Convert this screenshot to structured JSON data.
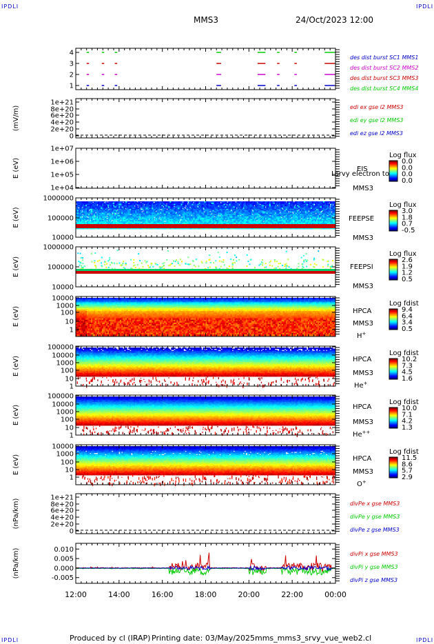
{
  "header": {
    "corner_label": "IPDLI",
    "title": "MMS3",
    "datetime": "24/Oct/2023 12:00"
  },
  "footer": {
    "produced_by": "Produced by cl (IRAP)",
    "printing_date": "Printing date: 03/May/2025",
    "filename": "mms_mms3_srvy_vue_web2.cl"
  },
  "time_axis": [
    "12:00",
    "14:00",
    "16:00",
    "18:00",
    "20:00",
    "22:00",
    "00:00"
  ],
  "colors": {
    "c1": "#0000cc",
    "c2": "#cc00cc",
    "c3": "#cc0000",
    "c4": "#00cc00"
  },
  "panels": [
    {
      "id": "burst",
      "yticks": [
        "4",
        "3",
        "2",
        "1"
      ],
      "legend": [
        "des dist burst SC1 MMS1",
        "des dist burst SC2 MMS2",
        "des dist burst SC3 MMS3",
        "des dist burst SC4 MMS4"
      ]
    },
    {
      "id": "edi",
      "ylabel": "(mV/m)",
      "yticks": [
        "1e+21",
        "8e+20",
        "6e+20",
        "4e+20",
        "2e+20",
        "0"
      ],
      "legend": [
        "edi ex gse l2 MMS3",
        "edi ey gse l2 MMS3",
        "edi ez gse l2 MMS3"
      ]
    },
    {
      "id": "eis",
      "ylabel": "E (eV)",
      "yticks": [
        "1e+07",
        "1e+06",
        "1e+05",
        "1e+04"
      ],
      "instrument": "EIS",
      "overlay_text": "Lsrvy electron to",
      "sat": "MMS3",
      "cb_title": "Log flux",
      "cb_ticks": [
        "0.0",
        "0.0",
        "0.0",
        "0.0"
      ]
    },
    {
      "id": "feepse",
      "ylabel": "E (eV)",
      "yticks": [
        "1000000",
        "100000",
        "10000"
      ],
      "instrument": "FEEPSE",
      "sat": "MMS3",
      "cb_title": "Log flux",
      "cb_ticks": [
        "3.0",
        "1.8",
        "0.7",
        "-0.5"
      ]
    },
    {
      "id": "feepsi",
      "ylabel": "E (eV)",
      "yticks": [
        "1000000",
        "100000",
        "10000"
      ],
      "instrument": "FEEPSI",
      "sat": "MMS3",
      "cb_title": "Log flux",
      "cb_ticks": [
        "2.6",
        "1.9",
        "1.2",
        "0.5"
      ]
    },
    {
      "id": "hpca_h",
      "ylabel": "E (eV)",
      "yticks": [
        "10000",
        "1000",
        "100",
        "10",
        "1"
      ],
      "instrument": "HPCA",
      "sat": "MMS3",
      "species": "H",
      "species_sup": "+",
      "cb_title": "Log fdist",
      "cb_ticks": [
        "9.4",
        "6.4",
        "3.4",
        "0.5"
      ]
    },
    {
      "id": "hpca_he",
      "ylabel": "E (eV)",
      "yticks": [
        "100000",
        "10000",
        "1000",
        "100",
        "10",
        "1"
      ],
      "instrument": "HPCA",
      "sat": "MMS3",
      "species": "He",
      "species_sup": "+",
      "cb_title": "Log fdist",
      "cb_ticks": [
        "10.2",
        "7.3",
        "4.5",
        "1.6"
      ]
    },
    {
      "id": "hpca_hepp",
      "ylabel": "E (eV)",
      "yticks": [
        "100000",
        "10000",
        "1000",
        "100",
        "10",
        "1"
      ],
      "instrument": "HPCA",
      "sat": "MMS3",
      "species": "He",
      "species_sup": "++",
      "cb_title": "Log fdist",
      "cb_ticks": [
        "10.0",
        "7.1",
        "4.2",
        "1.3"
      ]
    },
    {
      "id": "hpca_o",
      "ylabel": "E (eV)",
      "yticks": [
        "10000",
        "1000",
        "100",
        "10",
        "1"
      ],
      "instrument": "HPCA",
      "sat": "MMS3",
      "species": "O",
      "species_sup": "+",
      "cb_title": "Log fdist",
      "cb_ticks": [
        "11.5",
        "8.6",
        "5.7",
        "2.9"
      ]
    },
    {
      "id": "divpe",
      "ylabel": "(nPa/km)",
      "yticks": [
        "1e+21",
        "8e+20",
        "6e+20",
        "4e+20",
        "2e+20",
        "0"
      ],
      "legend": [
        "divPe x gse MMS3",
        "divPe y gse MMS3",
        "divPe z gse MMS3"
      ]
    },
    {
      "id": "divpi",
      "ylabel": "(nPa/km)",
      "yticks": [
        "0.010",
        "0.005",
        "0.000",
        "-0.005"
      ],
      "legend": [
        "divPi x gse MMS3",
        "divPi y gse MMS3",
        "divPi z gse MMS3"
      ]
    }
  ],
  "chart_data": {
    "type": "line",
    "title": "MMS3",
    "x": [
      "12:00",
      "14:00",
      "16:00",
      "18:00",
      "20:00",
      "22:00",
      "00:00"
    ],
    "divpi_ylim": [
      -0.008,
      0.013
    ],
    "burst_intervals_hours": [
      [
        12.5,
        12.55
      ],
      [
        13.2,
        13.25
      ],
      [
        13.8,
        13.85
      ],
      [
        18.5,
        18.65
      ],
      [
        20.4,
        20.7
      ],
      [
        21.3,
        21.35
      ],
      [
        22.1,
        22.15
      ],
      [
        23.5,
        23.9
      ]
    ],
    "grid": false
  }
}
